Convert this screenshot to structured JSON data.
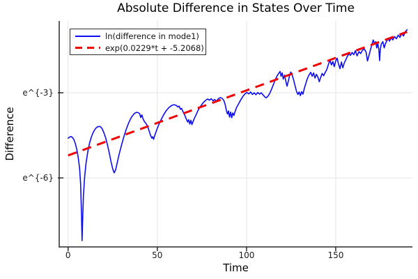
{
  "title": "Absolute Difference in States Over Time",
  "axes": {
    "xlabel": "Time",
    "ylabel": "Difference"
  },
  "legend": [
    {
      "label": "ln(difference in mode1)",
      "color": "#0c0cf0",
      "style": "solid"
    },
    {
      "label": "exp(0.0229*t + -5.2068)",
      "color": "#f00000",
      "style": "dashed"
    }
  ],
  "colors": {
    "series1_blue": "#0c0cf0",
    "series2_red": "#f00000",
    "grid": "#e4e4e4",
    "axis": "#2a2a2a",
    "background": "#ffffff"
  },
  "chart_data": {
    "type": "line",
    "title": "Absolute Difference in States Over Time",
    "xlabel": "Time",
    "ylabel": "Difference",
    "y_scale": "log-e",
    "grid": true,
    "legend_position": "top-left",
    "xlim": [
      -5,
      193
    ],
    "ylim_ln": [
      -8.43,
      -0.47
    ],
    "x_ticks": [
      {
        "value": 0,
        "label": "0"
      },
      {
        "value": 50,
        "label": "50"
      },
      {
        "value": 100,
        "label": "100"
      },
      {
        "value": 150,
        "label": "150"
      }
    ],
    "y_ticks": [
      {
        "ln": -3,
        "label": "e^{-3}"
      },
      {
        "ln": -6,
        "label": "e^{-6}"
      }
    ],
    "series": [
      {
        "name": "ln(difference in mode1)",
        "type": "sampled_line",
        "color": "#0c0cf0",
        "width": 1.6,
        "points_t_ln": [
          [
            0,
            -4.6
          ],
          [
            0.8,
            -4.56
          ],
          [
            1.6,
            -4.54
          ],
          [
            2.4,
            -4.57
          ],
          [
            3.2,
            -4.65
          ],
          [
            4,
            -4.78
          ],
          [
            4.8,
            -4.98
          ],
          [
            5.6,
            -5.25
          ],
          [
            6.4,
            -5.65
          ],
          [
            7,
            -6.2
          ],
          [
            7.5,
            -7.3
          ],
          [
            7.8,
            -8.21
          ],
          [
            8.1,
            -7.6
          ],
          [
            8.6,
            -6.6
          ],
          [
            9.2,
            -6.0
          ],
          [
            10,
            -5.5
          ],
          [
            11,
            -5.08
          ],
          [
            12,
            -4.78
          ],
          [
            13,
            -4.56
          ],
          [
            14,
            -4.4
          ],
          [
            15,
            -4.29
          ],
          [
            16,
            -4.22
          ],
          [
            17,
            -4.19
          ],
          [
            18,
            -4.19
          ],
          [
            19,
            -4.26
          ],
          [
            20,
            -4.4
          ],
          [
            21,
            -4.58
          ],
          [
            22,
            -4.82
          ],
          [
            23,
            -5.1
          ],
          [
            24,
            -5.42
          ],
          [
            25,
            -5.68
          ],
          [
            25.8,
            -5.82
          ],
          [
            26.6,
            -5.72
          ],
          [
            27.4,
            -5.5
          ],
          [
            28.4,
            -5.22
          ],
          [
            29.6,
            -4.92
          ],
          [
            31,
            -4.6
          ],
          [
            32.5,
            -4.3
          ],
          [
            34,
            -4.05
          ],
          [
            35.5,
            -3.86
          ],
          [
            37,
            -3.74
          ],
          [
            38.2,
            -3.69
          ],
          [
            39.3,
            -3.7
          ],
          [
            40.1,
            -3.74
          ],
          [
            40.7,
            -3.87
          ],
          [
            41.3,
            -3.78
          ],
          [
            42,
            -3.92
          ],
          [
            42.8,
            -4.02
          ],
          [
            43.6,
            -4.08
          ],
          [
            44.5,
            -4.18
          ],
          [
            45.4,
            -4.35
          ],
          [
            46.2,
            -4.5
          ],
          [
            46.9,
            -4.6
          ],
          [
            47.4,
            -4.55
          ],
          [
            47.9,
            -4.64
          ],
          [
            48.6,
            -4.5
          ],
          [
            49.5,
            -4.33
          ],
          [
            50.5,
            -4.17
          ],
          [
            52,
            -3.96
          ],
          [
            53.5,
            -3.78
          ],
          [
            55,
            -3.63
          ],
          [
            56.5,
            -3.52
          ],
          [
            58,
            -3.45
          ],
          [
            59.3,
            -3.42
          ],
          [
            60.5,
            -3.44
          ],
          [
            61.5,
            -3.5
          ],
          [
            62.2,
            -3.47
          ],
          [
            62.9,
            -3.58
          ],
          [
            63.6,
            -3.55
          ],
          [
            64.4,
            -3.67
          ],
          [
            65.3,
            -3.78
          ],
          [
            66.2,
            -3.92
          ],
          [
            67,
            -4.03
          ],
          [
            67.6,
            -3.95
          ],
          [
            68.2,
            -4.1
          ],
          [
            68.8,
            -3.97
          ],
          [
            69.4,
            -4.12
          ],
          [
            70,
            -4.02
          ],
          [
            70.8,
            -3.9
          ],
          [
            71.8,
            -3.76
          ],
          [
            73,
            -3.6
          ],
          [
            74.3,
            -3.47
          ],
          [
            75.6,
            -3.36
          ],
          [
            77,
            -3.27
          ],
          [
            78.2,
            -3.22
          ],
          [
            79.2,
            -3.26
          ],
          [
            80.2,
            -3.21
          ],
          [
            81.2,
            -3.28
          ],
          [
            82.2,
            -3.24
          ],
          [
            83.2,
            -3.3
          ],
          [
            84.2,
            -3.21
          ],
          [
            85.2,
            -3.17
          ],
          [
            86.2,
            -3.19
          ],
          [
            87.2,
            -3.26
          ],
          [
            88,
            -3.4
          ],
          [
            88.7,
            -3.62
          ],
          [
            89.3,
            -3.75
          ],
          [
            89.9,
            -3.64
          ],
          [
            90.5,
            -3.86
          ],
          [
            91.1,
            -3.68
          ],
          [
            91.7,
            -3.88
          ],
          [
            92.3,
            -3.71
          ],
          [
            92.9,
            -3.8
          ],
          [
            93.6,
            -3.66
          ],
          [
            94.4,
            -3.52
          ],
          [
            95.3,
            -3.42
          ],
          [
            96.3,
            -3.3
          ],
          [
            97.3,
            -3.2
          ],
          [
            98.3,
            -3.1
          ],
          [
            99.3,
            -3.03
          ],
          [
            100.3,
            -2.99
          ],
          [
            101.3,
            -3.04
          ],
          [
            102.3,
            -2.97
          ],
          [
            103.3,
            -3.06
          ],
          [
            104.3,
            -3.0
          ],
          [
            105.3,
            -3.07
          ],
          [
            106.3,
            -2.99
          ],
          [
            107.3,
            -3.05
          ],
          [
            108.3,
            -3.0
          ],
          [
            109.3,
            -3.08
          ],
          [
            110.2,
            -3.14
          ],
          [
            111,
            -3.18
          ],
          [
            112,
            -3.12
          ],
          [
            113,
            -3.02
          ],
          [
            114,
            -2.88
          ],
          [
            115,
            -2.72
          ],
          [
            116,
            -2.56
          ],
          [
            117,
            -2.42
          ],
          [
            118,
            -2.32
          ],
          [
            118.8,
            -2.25
          ],
          [
            119.4,
            -2.42
          ],
          [
            120,
            -2.3
          ],
          [
            120.6,
            -2.52
          ],
          [
            121.3,
            -2.38
          ],
          [
            122,
            -2.58
          ],
          [
            122.7,
            -2.77
          ],
          [
            123.4,
            -2.6
          ],
          [
            124.1,
            -2.4
          ],
          [
            124.8,
            -2.27
          ],
          [
            125.6,
            -2.38
          ],
          [
            126.4,
            -2.55
          ],
          [
            127.2,
            -2.75
          ],
          [
            128,
            -2.95
          ],
          [
            128.8,
            -3.06
          ],
          [
            129.5,
            -2.97
          ],
          [
            130.2,
            -3.1
          ],
          [
            130.9,
            -2.96
          ],
          [
            131.6,
            -3.05
          ],
          [
            132.4,
            -2.85
          ],
          [
            133.2,
            -2.68
          ],
          [
            134,
            -2.52
          ],
          [
            135,
            -2.38
          ],
          [
            136,
            -2.28
          ],
          [
            136.8,
            -2.42
          ],
          [
            137.6,
            -2.3
          ],
          [
            138.4,
            -2.48
          ],
          [
            139.2,
            -2.35
          ],
          [
            140,
            -2.45
          ],
          [
            140.8,
            -2.61
          ],
          [
            141.6,
            -2.45
          ],
          [
            142.4,
            -2.32
          ],
          [
            143.2,
            -2.4
          ],
          [
            144,
            -2.3
          ],
          [
            145,
            -2.18
          ],
          [
            146,
            -1.98
          ],
          [
            146.8,
            -1.85
          ],
          [
            147.6,
            -2.02
          ],
          [
            148.4,
            -1.9
          ],
          [
            149.2,
            -2.08
          ],
          [
            150,
            -1.88
          ],
          [
            150.8,
            -1.78
          ],
          [
            151.6,
            -2.0
          ],
          [
            152.4,
            -2.15
          ],
          [
            153.2,
            -1.92
          ],
          [
            154,
            -2.12
          ],
          [
            154.8,
            -1.95
          ],
          [
            155.6,
            -1.85
          ],
          [
            156.5,
            -1.72
          ],
          [
            157.4,
            -1.63
          ],
          [
            158.3,
            -1.68
          ],
          [
            159.2,
            -1.58
          ],
          [
            160.1,
            -1.66
          ],
          [
            161,
            -1.52
          ],
          [
            162,
            -1.7
          ],
          [
            163,
            -1.55
          ],
          [
            164,
            -1.62
          ],
          [
            165,
            -1.5
          ],
          [
            166,
            -1.46
          ],
          [
            167,
            -1.56
          ],
          [
            167.8,
            -1.88
          ],
          [
            168.6,
            -1.7
          ],
          [
            169.4,
            -1.5
          ],
          [
            170.2,
            -1.32
          ],
          [
            171,
            -1.14
          ],
          [
            171.8,
            -1.28
          ],
          [
            172.4,
            -1.2
          ],
          [
            173,
            -1.42
          ],
          [
            173.6,
            -1.26
          ],
          [
            174.2,
            -1.5
          ],
          [
            174.6,
            -1.87
          ],
          [
            175,
            -1.45
          ],
          [
            175.6,
            -1.28
          ],
          [
            176.4,
            -1.2
          ],
          [
            177.2,
            -1.42
          ],
          [
            177.8,
            -1.28
          ],
          [
            178.6,
            -1.18
          ],
          [
            179.4,
            -1.1
          ],
          [
            180.2,
            -1.18
          ],
          [
            181,
            -1.06
          ],
          [
            182,
            -1.14
          ],
          [
            183,
            -1.02
          ],
          [
            184,
            -1.1
          ],
          [
            185,
            -0.97
          ],
          [
            186,
            -1.05
          ],
          [
            187,
            -0.92
          ],
          [
            188,
            -1.0
          ],
          [
            189,
            -0.85
          ],
          [
            190,
            -0.78
          ]
        ]
      },
      {
        "name": "exp(0.0229*t + -5.2068)",
        "type": "exponential_fit_line",
        "color": "#f00000",
        "width": 3,
        "dashed": true,
        "slope": 0.0229,
        "intercept": -5.2068,
        "t_start": 0,
        "t_end": 190
      }
    ]
  }
}
